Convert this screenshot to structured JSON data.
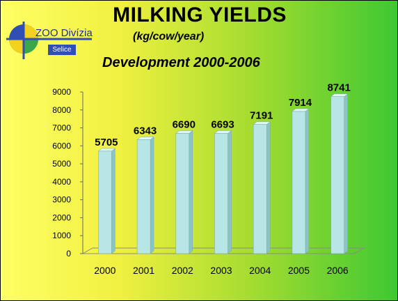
{
  "title": "MILKING YIELDS",
  "subtitle": "(kg/cow/year)",
  "subtitle2": "Development  2000-2006",
  "logo": {
    "name": "ZOO Divízia",
    "sub": "Selice"
  },
  "colors": {
    "bar_front": "#b8e6e6",
    "bar_side": "#8cc4c4",
    "bar_top": "#dff6f6"
  },
  "chart_data": {
    "type": "bar",
    "categories": [
      "2000",
      "2001",
      "2002",
      "2003",
      "2004",
      "2005",
      "2006"
    ],
    "values": [
      5705,
      6343,
      6690,
      6693,
      7191,
      7914,
      8741
    ],
    "ylim": [
      0,
      9000
    ],
    "yticks": [
      0,
      1000,
      2000,
      3000,
      4000,
      5000,
      6000,
      7000,
      8000,
      9000
    ]
  }
}
